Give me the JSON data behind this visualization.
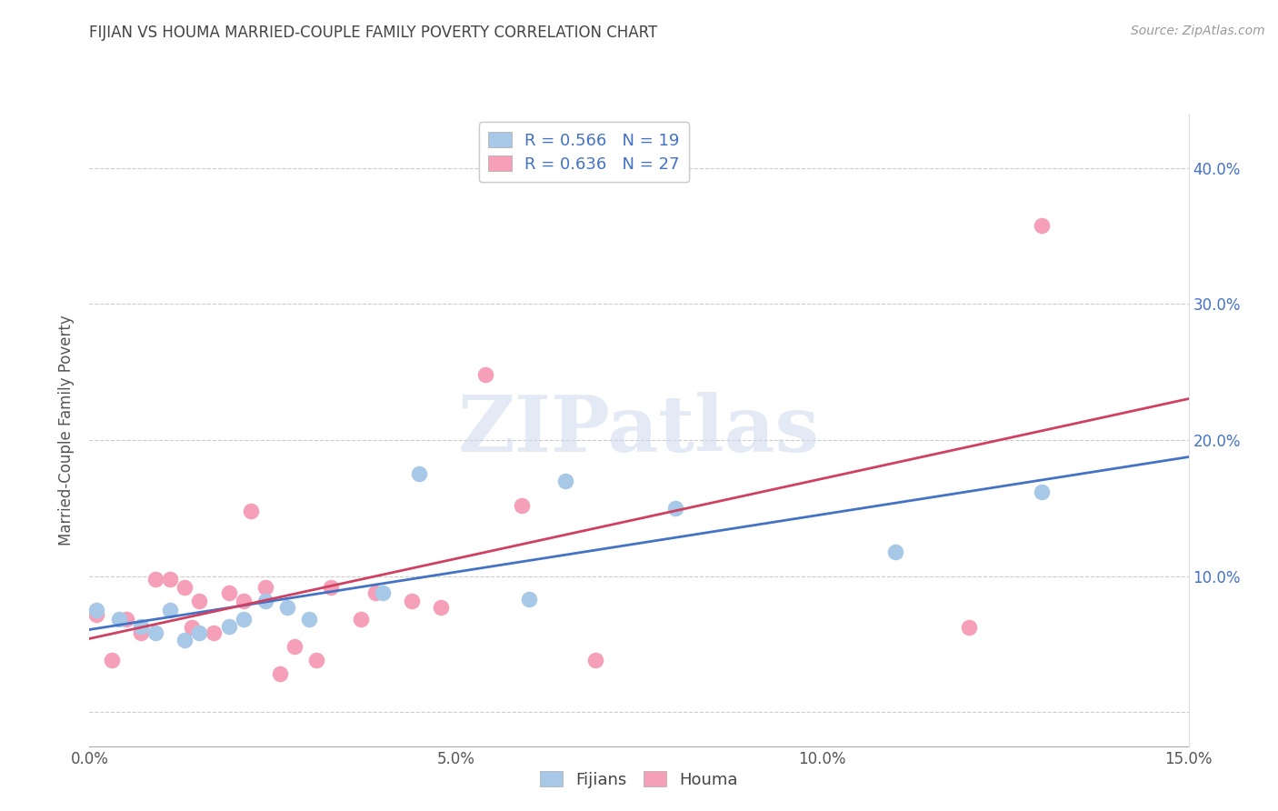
{
  "title": "FIJIAN VS HOUMA MARRIED-COUPLE FAMILY POVERTY CORRELATION CHART",
  "source": "Source: ZipAtlas.com",
  "ylabel": "Married-Couple Family Poverty",
  "xlim": [
    0.0,
    0.15
  ],
  "ylim": [
    -0.025,
    0.44
  ],
  "xticks": [
    0.0,
    0.05,
    0.1,
    0.15
  ],
  "xtick_labels": [
    "0.0%",
    "5.0%",
    "10.0%",
    "15.0%"
  ],
  "yticks": [
    0.0,
    0.1,
    0.2,
    0.3,
    0.4
  ],
  "ytick_labels": [
    "",
    "10.0%",
    "20.0%",
    "30.0%",
    "40.0%"
  ],
  "right_ytick_labels": [
    "",
    "10.0%",
    "20.0%",
    "30.0%",
    "40.0%"
  ],
  "fijian_color": "#a8c8e8",
  "houma_color": "#f5a0b8",
  "fijian_line_color": "#4472c4",
  "houma_line_color": "#d04060",
  "fijian_R": 0.566,
  "fijian_N": 19,
  "houma_R": 0.636,
  "houma_N": 27,
  "text_color": "#4472c4",
  "background_color": "#ffffff",
  "grid_color": "#cccccc",
  "watermark": "ZIPatlas",
  "fijian_x": [
    0.001,
    0.004,
    0.007,
    0.009,
    0.011,
    0.013,
    0.015,
    0.019,
    0.021,
    0.024,
    0.027,
    0.03,
    0.04,
    0.045,
    0.06,
    0.065,
    0.08,
    0.11,
    0.13
  ],
  "fijian_y": [
    0.075,
    0.068,
    0.063,
    0.058,
    0.075,
    0.053,
    0.058,
    0.063,
    0.068,
    0.082,
    0.077,
    0.068,
    0.088,
    0.175,
    0.083,
    0.17,
    0.15,
    0.118,
    0.162
  ],
  "houma_x": [
    0.001,
    0.003,
    0.005,
    0.007,
    0.009,
    0.011,
    0.013,
    0.014,
    0.015,
    0.017,
    0.019,
    0.021,
    0.022,
    0.024,
    0.026,
    0.028,
    0.031,
    0.033,
    0.037,
    0.039,
    0.044,
    0.048,
    0.054,
    0.059,
    0.069,
    0.12,
    0.13
  ],
  "houma_y": [
    0.072,
    0.038,
    0.068,
    0.058,
    0.098,
    0.098,
    0.092,
    0.062,
    0.082,
    0.058,
    0.088,
    0.082,
    0.148,
    0.092,
    0.028,
    0.048,
    0.038,
    0.092,
    0.068,
    0.088,
    0.082,
    0.077,
    0.248,
    0.152,
    0.038,
    0.062,
    0.358
  ]
}
